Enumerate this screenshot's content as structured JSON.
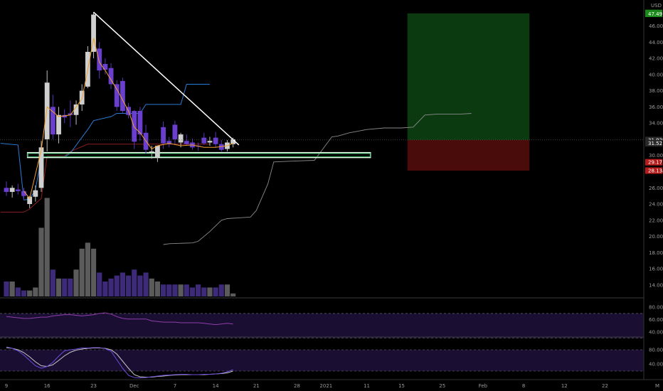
{
  "chart_data": {
    "type": "candlestick",
    "currency": "USD",
    "price_axis": {
      "ticks": [
        "46.00",
        "44.00",
        "42.00",
        "40.00",
        "38.00",
        "36.00",
        "34.00",
        "32.00",
        "30.00",
        "28.00",
        "26.00",
        "24.00",
        "22.00",
        "20.00",
        "18.00",
        "16.00",
        "14.00"
      ],
      "ylim": [
        12.5,
        48.5
      ]
    },
    "time_axis": {
      "ticks": [
        "9",
        "16",
        "23",
        "Dec",
        "7",
        "14",
        "21",
        "28",
        "2021",
        "11",
        "15",
        "25",
        "Feb",
        "8",
        "12",
        "22",
        "M"
      ]
    },
    "price_tags": [
      {
        "label": "47.61",
        "color": "#1a8a1a"
      },
      {
        "label": "47.49",
        "color": "#1a8a1a"
      },
      {
        "label": "31.92",
        "color": "#2a2a2a"
      },
      {
        "label": "31.52",
        "color": "#2a2a2a"
      },
      {
        "label": "29.17",
        "color": "#b71c1c"
      },
      {
        "label": "28.13",
        "color": "#b71c1c"
      }
    ],
    "candles": [
      {
        "o": 26.0,
        "h": 26.8,
        "l": 25.0,
        "c": 25.5
      },
      {
        "o": 25.5,
        "h": 26.3,
        "l": 24.8,
        "c": 26.0
      },
      {
        "o": 25.8,
        "h": 26.5,
        "l": 25.2,
        "c": 25.6
      },
      {
        "o": 25.6,
        "h": 26.0,
        "l": 24.5,
        "c": 25.0
      },
      {
        "o": 24.0,
        "h": 25.0,
        "l": 23.5,
        "c": 24.9
      },
      {
        "o": 24.9,
        "h": 26.3,
        "l": 24.3,
        "c": 25.7
      },
      {
        "o": 26.0,
        "h": 31.8,
        "l": 25.5,
        "c": 31.0
      },
      {
        "o": 32.0,
        "h": 40.5,
        "l": 30.5,
        "c": 39.0
      },
      {
        "o": 36.0,
        "h": 37.5,
        "l": 32.0,
        "c": 32.6
      },
      {
        "o": 32.6,
        "h": 36.0,
        "l": 31.5,
        "c": 35.0
      },
      {
        "o": 35.0,
        "h": 35.7,
        "l": 34.0,
        "c": 34.7
      },
      {
        "o": 35.2,
        "h": 36.8,
        "l": 33.5,
        "c": 35.0
      },
      {
        "o": 35.0,
        "h": 36.8,
        "l": 33.8,
        "c": 36.3
      },
      {
        "o": 36.3,
        "h": 38.8,
        "l": 35.5,
        "c": 38.0
      },
      {
        "o": 38.5,
        "h": 43.5,
        "l": 38.3,
        "c": 42.8
      },
      {
        "o": 42.8,
        "h": 47.7,
        "l": 42.0,
        "c": 47.4
      },
      {
        "o": 43.2,
        "h": 44.0,
        "l": 39.5,
        "c": 40.5
      },
      {
        "o": 41.3,
        "h": 42.0,
        "l": 40.0,
        "c": 40.6
      },
      {
        "o": 40.8,
        "h": 41.4,
        "l": 38.2,
        "c": 38.8
      },
      {
        "o": 38.8,
        "h": 39.3,
        "l": 35.5,
        "c": 36.0
      },
      {
        "o": 39.2,
        "h": 39.6,
        "l": 35.2,
        "c": 35.5
      },
      {
        "o": 36.0,
        "h": 36.5,
        "l": 34.6,
        "c": 35.0
      },
      {
        "o": 35.5,
        "h": 35.6,
        "l": 30.8,
        "c": 31.7
      },
      {
        "o": 35.5,
        "h": 36.0,
        "l": 31.8,
        "c": 32.6
      },
      {
        "o": 32.8,
        "h": 33.8,
        "l": 30.2,
        "c": 30.7
      },
      {
        "o": 30.5,
        "h": 31.2,
        "l": 29.6,
        "c": 30.5
      },
      {
        "o": 29.8,
        "h": 31.0,
        "l": 29.2,
        "c": 31.2
      },
      {
        "o": 33.5,
        "h": 34.2,
        "l": 30.8,
        "c": 31.5
      },
      {
        "o": 31.8,
        "h": 32.3,
        "l": 31.0,
        "c": 31.4
      },
      {
        "o": 33.8,
        "h": 34.3,
        "l": 31.3,
        "c": 32.0
      },
      {
        "o": 31.6,
        "h": 32.8,
        "l": 31.0,
        "c": 32.6
      },
      {
        "o": 31.8,
        "h": 32.6,
        "l": 31.2,
        "c": 31.4
      },
      {
        "o": 31.6,
        "h": 32.1,
        "l": 30.7,
        "c": 31.0
      },
      {
        "o": 31.2,
        "h": 31.6,
        "l": 30.6,
        "c": 31.1
      },
      {
        "o": 32.2,
        "h": 32.8,
        "l": 31.3,
        "c": 31.5
      },
      {
        "o": 31.6,
        "h": 32.3,
        "l": 31.2,
        "c": 31.8
      },
      {
        "o": 32.2,
        "h": 32.9,
        "l": 31.0,
        "c": 31.4
      },
      {
        "o": 31.4,
        "h": 31.9,
        "l": 30.5,
        "c": 30.7
      },
      {
        "o": 30.8,
        "h": 31.9,
        "l": 30.5,
        "c": 31.6
      },
      {
        "o": 31.4,
        "h": 32.2,
        "l": 31.0,
        "c": 32.0
      }
    ],
    "volume": [
      5,
      5,
      3,
      2,
      2,
      3,
      23,
      33,
      9,
      6,
      6,
      6,
      9,
      16,
      18,
      16,
      8,
      5,
      6,
      7,
      8,
      7,
      9,
      7,
      8,
      6,
      5,
      4,
      4,
      4,
      4,
      4,
      3,
      4,
      3,
      3,
      3,
      4,
      4,
      1
    ],
    "overlays": {
      "blue_line": [
        [
          -1,
          31.5
        ],
        [
          2,
          31.3
        ],
        [
          3,
          24.5
        ],
        [
          4,
          24.6
        ],
        [
          5,
          25.8
        ],
        [
          6,
          29.8
        ],
        [
          10,
          29.8
        ],
        [
          11,
          30.3
        ],
        [
          14,
          33.2
        ],
        [
          15,
          34.3
        ],
        [
          18,
          34.8
        ],
        [
          19,
          35.2
        ],
        [
          23,
          35.2
        ],
        [
          24,
          36.3
        ],
        [
          30,
          36.3
        ],
        [
          31,
          38.8
        ],
        [
          35,
          38.8
        ]
      ],
      "red_line": [
        [
          -1,
          23.0
        ],
        [
          3,
          23.0
        ],
        [
          4,
          23.4
        ],
        [
          6,
          24.7
        ],
        [
          7,
          29.9
        ],
        [
          10,
          29.9
        ],
        [
          11,
          30.5
        ],
        [
          14,
          31.4
        ],
        [
          35,
          31.4
        ]
      ],
      "orange_line": [
        [
          3,
          25.6
        ],
        [
          4,
          24.7
        ],
        [
          6,
          30.7
        ],
        [
          7,
          36.0
        ],
        [
          9,
          34.8
        ],
        [
          11,
          35.0
        ],
        [
          13,
          37.0
        ],
        [
          14,
          40.6
        ],
        [
          15,
          44.5
        ],
        [
          16,
          41.5
        ],
        [
          17,
          40.5
        ],
        [
          19,
          38.2
        ],
        [
          21,
          35.5
        ],
        [
          22,
          33.5
        ],
        [
          23,
          32.8
        ],
        [
          25,
          30.8
        ],
        [
          26,
          31.2
        ],
        [
          28,
          31.5
        ],
        [
          30,
          31.2
        ],
        [
          32,
          31.3
        ],
        [
          34,
          31.0
        ],
        [
          36,
          31.0
        ],
        [
          38,
          31.2
        ],
        [
          39,
          31.5
        ]
      ],
      "gray_cloud_line": [
        [
          27,
          19.0
        ],
        [
          28,
          19.1
        ],
        [
          32,
          19.2
        ],
        [
          33,
          19.4
        ],
        [
          35,
          20.6
        ],
        [
          37,
          22.0
        ],
        [
          38,
          22.2
        ],
        [
          40,
          22.3
        ],
        [
          42,
          22.4
        ],
        [
          43,
          23.2
        ],
        [
          45,
          26.5
        ],
        [
          46,
          29.2
        ],
        [
          49,
          29.3
        ],
        [
          53,
          29.4
        ],
        [
          56,
          32.3
        ],
        [
          57,
          32.4
        ],
        [
          59,
          32.8
        ],
        [
          62,
          33.2
        ],
        [
          65,
          33.4
        ],
        [
          68,
          33.4
        ],
        [
          70,
          33.5
        ],
        [
          72,
          35.0
        ],
        [
          74,
          35.1
        ],
        [
          78,
          35.1
        ],
        [
          80,
          35.2
        ]
      ]
    },
    "trendline": {
      "from": [
        15,
        47.7
      ],
      "to": [
        40,
        31.3
      ]
    },
    "support_zone": {
      "from_bar": 4,
      "to_bar": 63,
      "low": 29.75,
      "high": 30.35
    },
    "position_box": {
      "from_bar": 69,
      "to_bar": 90,
      "top": 47.55,
      "entry": 31.92,
      "stop": 28.13
    },
    "rsi": {
      "levels": [
        "80.00",
        "60.00",
        "40.00"
      ],
      "ylim": [
        32,
        94
      ],
      "band": [
        30,
        70
      ],
      "values": [
        65,
        64,
        63,
        62,
        62,
        63,
        64,
        64,
        66,
        67,
        68,
        68,
        67,
        66,
        67,
        68,
        70,
        71,
        69,
        65,
        62,
        61,
        61,
        61,
        61,
        58,
        57,
        56,
        56,
        56,
        55,
        55,
        55,
        55,
        54,
        53,
        52,
        53,
        54,
        53
      ]
    },
    "stoch": {
      "levels": [
        "80.00",
        "40.00"
      ],
      "ylim": [
        -2,
        112
      ],
      "band": [
        20,
        80
      ],
      "k": [
        88,
        84,
        77,
        65,
        50,
        35,
        28,
        33,
        45,
        62,
        77,
        80,
        82,
        85,
        85,
        86,
        86,
        83,
        76,
        52,
        28,
        8,
        2,
        1,
        2,
        4,
        6,
        8,
        9,
        10,
        11,
        11,
        10,
        10,
        11,
        11,
        12,
        14,
        18,
        24
      ],
      "d": [
        86,
        84,
        80,
        72,
        60,
        46,
        35,
        33,
        38,
        50,
        63,
        73,
        79,
        82,
        84,
        85,
        85,
        84,
        80,
        68,
        48,
        28,
        10,
        4,
        3,
        3,
        5,
        6,
        8,
        9,
        10,
        10,
        10,
        10,
        10,
        11,
        12,
        13,
        15,
        20
      ]
    }
  }
}
